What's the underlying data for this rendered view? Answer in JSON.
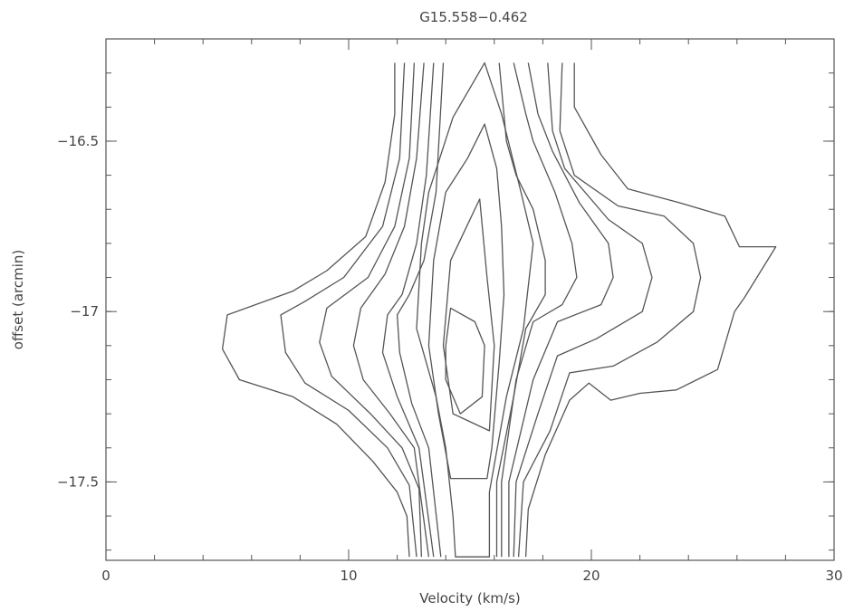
{
  "chart_data": {
    "type": "contour",
    "title": "G15.558−0.462",
    "xlabel": "Velocity (km/s)",
    "ylabel": "offset (arcmin)",
    "xlim": [
      0,
      30
    ],
    "ylim": [
      -17.73,
      -16.2
    ],
    "x_ticks": [
      {
        "value": 0,
        "label": "0"
      },
      {
        "value": 10,
        "label": "10"
      },
      {
        "value": 20,
        "label": "20"
      },
      {
        "value": 30,
        "label": "30"
      }
    ],
    "y_ticks": [
      {
        "value": -16.5,
        "label": "−16.5"
      },
      {
        "value": -17,
        "label": "−17"
      },
      {
        "value": -17.5,
        "label": "−17.5"
      }
    ],
    "grid": false,
    "line_color": "#555555",
    "contours": [
      {
        "level": 1,
        "closed": false,
        "points": [
          [
            11.9,
            -16.27
          ],
          [
            11.9,
            -16.42
          ],
          [
            11.5,
            -16.62
          ],
          [
            10.7,
            -16.78
          ],
          [
            9.1,
            -16.88
          ],
          [
            7.7,
            -16.94
          ],
          [
            5.0,
            -17.01
          ],
          [
            4.8,
            -17.11
          ],
          [
            5.5,
            -17.2
          ],
          [
            7.7,
            -17.25
          ],
          [
            9.5,
            -17.33
          ],
          [
            11.0,
            -17.44
          ],
          [
            12.0,
            -17.53
          ],
          [
            12.4,
            -17.6
          ],
          [
            12.5,
            -17.72
          ]
        ]
      },
      {
        "level": 1,
        "closed": false,
        "points": [
          [
            19.3,
            -16.27
          ],
          [
            19.3,
            -16.4
          ],
          [
            20.4,
            -16.54
          ],
          [
            21.5,
            -16.64
          ],
          [
            23.6,
            -16.68
          ],
          [
            25.5,
            -16.72
          ],
          [
            26.1,
            -16.81
          ],
          [
            27.6,
            -16.81
          ],
          [
            26.3,
            -16.96
          ],
          [
            25.9,
            -17.0
          ],
          [
            25.2,
            -17.17
          ],
          [
            23.5,
            -17.23
          ],
          [
            22.0,
            -17.24
          ],
          [
            20.8,
            -17.26
          ],
          [
            19.9,
            -17.21
          ],
          [
            19.1,
            -17.26
          ],
          [
            18.1,
            -17.42
          ],
          [
            17.4,
            -17.58
          ],
          [
            17.3,
            -17.72
          ]
        ]
      },
      {
        "level": 2,
        "closed": false,
        "points": [
          [
            12.3,
            -16.27
          ],
          [
            12.1,
            -16.55
          ],
          [
            11.4,
            -16.75
          ],
          [
            9.8,
            -16.9
          ],
          [
            8.2,
            -16.97
          ],
          [
            7.2,
            -17.01
          ],
          [
            7.4,
            -17.12
          ],
          [
            8.2,
            -17.21
          ],
          [
            10.0,
            -17.29
          ],
          [
            11.6,
            -17.4
          ],
          [
            12.5,
            -17.51
          ],
          [
            12.8,
            -17.72
          ]
        ]
      },
      {
        "level": 2,
        "closed": false,
        "points": [
          [
            18.8,
            -16.27
          ],
          [
            18.7,
            -16.47
          ],
          [
            19.3,
            -16.6
          ],
          [
            21.1,
            -16.69
          ],
          [
            23.0,
            -16.72
          ],
          [
            24.2,
            -16.8
          ],
          [
            24.5,
            -16.9
          ],
          [
            24.2,
            -17.0
          ],
          [
            22.7,
            -17.09
          ],
          [
            20.9,
            -17.16
          ],
          [
            19.1,
            -17.18
          ],
          [
            18.3,
            -17.35
          ],
          [
            17.2,
            -17.5
          ],
          [
            17.0,
            -17.72
          ]
        ]
      },
      {
        "level": 3,
        "closed": false,
        "points": [
          [
            12.7,
            -16.27
          ],
          [
            12.5,
            -16.55
          ],
          [
            11.9,
            -16.75
          ],
          [
            10.8,
            -16.9
          ],
          [
            9.1,
            -16.99
          ],
          [
            8.8,
            -17.09
          ],
          [
            9.3,
            -17.19
          ],
          [
            10.9,
            -17.3
          ],
          [
            12.2,
            -17.4
          ],
          [
            12.9,
            -17.52
          ],
          [
            13.0,
            -17.72
          ]
        ]
      },
      {
        "level": 3,
        "closed": false,
        "points": [
          [
            18.2,
            -16.27
          ],
          [
            18.4,
            -16.47
          ],
          [
            18.9,
            -16.58
          ],
          [
            20.7,
            -16.73
          ],
          [
            22.1,
            -16.8
          ],
          [
            22.5,
            -16.9
          ],
          [
            22.1,
            -17.0
          ],
          [
            20.2,
            -17.08
          ],
          [
            18.6,
            -17.13
          ],
          [
            17.8,
            -17.3
          ],
          [
            16.9,
            -17.5
          ],
          [
            16.8,
            -17.72
          ]
        ]
      },
      {
        "level": 4,
        "closed": false,
        "points": [
          [
            13.1,
            -16.27
          ],
          [
            12.8,
            -16.55
          ],
          [
            12.3,
            -16.75
          ],
          [
            11.5,
            -16.89
          ],
          [
            10.5,
            -16.99
          ],
          [
            10.2,
            -17.1
          ],
          [
            10.6,
            -17.2
          ],
          [
            11.7,
            -17.3
          ],
          [
            12.7,
            -17.4
          ],
          [
            13.3,
            -17.72
          ]
        ]
      },
      {
        "level": 4,
        "closed": false,
        "points": [
          [
            17.4,
            -16.27
          ],
          [
            17.8,
            -16.42
          ],
          [
            18.4,
            -16.53
          ],
          [
            19.5,
            -16.68
          ],
          [
            20.7,
            -16.8
          ],
          [
            20.9,
            -16.9
          ],
          [
            20.4,
            -16.98
          ],
          [
            18.6,
            -17.03
          ],
          [
            17.6,
            -17.2
          ],
          [
            16.6,
            -17.5
          ],
          [
            16.6,
            -17.72
          ]
        ]
      },
      {
        "level": 5,
        "closed": false,
        "points": [
          [
            13.5,
            -16.27
          ],
          [
            13.2,
            -16.6
          ],
          [
            12.8,
            -16.8
          ],
          [
            12.2,
            -16.95
          ],
          [
            11.6,
            -17.01
          ],
          [
            11.4,
            -17.12
          ],
          [
            12.0,
            -17.25
          ],
          [
            12.9,
            -17.4
          ],
          [
            13.5,
            -17.72
          ]
        ]
      },
      {
        "level": 5,
        "closed": false,
        "points": [
          [
            16.8,
            -16.27
          ],
          [
            17.3,
            -16.42
          ],
          [
            17.6,
            -16.5
          ],
          [
            18.5,
            -16.65
          ],
          [
            19.2,
            -16.8
          ],
          [
            19.4,
            -16.9
          ],
          [
            18.8,
            -16.98
          ],
          [
            17.6,
            -17.03
          ],
          [
            16.9,
            -17.2
          ],
          [
            16.3,
            -17.5
          ],
          [
            16.3,
            -17.72
          ]
        ]
      },
      {
        "level": 6,
        "closed": false,
        "points": [
          [
            13.9,
            -16.27
          ],
          [
            13.6,
            -16.65
          ],
          [
            13.1,
            -16.85
          ],
          [
            12.5,
            -16.95
          ],
          [
            12.0,
            -17.01
          ],
          [
            12.1,
            -17.12
          ],
          [
            12.6,
            -17.27
          ],
          [
            13.3,
            -17.4
          ],
          [
            13.8,
            -17.72
          ]
        ]
      },
      {
        "level": 6,
        "closed": false,
        "points": [
          [
            16.2,
            -16.27
          ],
          [
            16.5,
            -16.5
          ],
          [
            16.9,
            -16.6
          ],
          [
            17.6,
            -16.7
          ],
          [
            18.1,
            -16.85
          ],
          [
            18.1,
            -16.95
          ],
          [
            17.3,
            -17.05
          ],
          [
            16.8,
            -17.25
          ],
          [
            16.1,
            -17.5
          ],
          [
            16.1,
            -17.72
          ]
        ]
      },
      {
        "level": 7,
        "closed": true,
        "points": [
          [
            15.6,
            -16.27
          ],
          [
            16.3,
            -16.42
          ],
          [
            17.1,
            -16.65
          ],
          [
            17.6,
            -16.8
          ],
          [
            17.2,
            -17.05
          ],
          [
            16.5,
            -17.25
          ],
          [
            15.8,
            -17.53
          ],
          [
            15.8,
            -17.72
          ],
          [
            14.4,
            -17.72
          ],
          [
            14.3,
            -17.6
          ],
          [
            14.0,
            -17.4
          ],
          [
            13.6,
            -17.25
          ],
          [
            12.8,
            -17.05
          ],
          [
            13.0,
            -16.8
          ],
          [
            13.3,
            -16.65
          ],
          [
            14.3,
            -16.43
          ]
        ]
      },
      {
        "level": 8,
        "closed": true,
        "points": [
          [
            15.6,
            -16.45
          ],
          [
            16.1,
            -16.58
          ],
          [
            16.3,
            -16.75
          ],
          [
            16.4,
            -16.95
          ],
          [
            16.2,
            -17.15
          ],
          [
            15.9,
            -17.4
          ],
          [
            15.7,
            -17.49
          ],
          [
            14.2,
            -17.49
          ],
          [
            13.7,
            -17.3
          ],
          [
            13.3,
            -17.1
          ],
          [
            13.5,
            -16.85
          ],
          [
            14.0,
            -16.65
          ],
          [
            14.9,
            -16.55
          ]
        ]
      },
      {
        "level": 9,
        "closed": true,
        "points": [
          [
            15.4,
            -16.67
          ],
          [
            15.7,
            -16.9
          ],
          [
            16.0,
            -17.1
          ],
          [
            15.8,
            -17.35
          ],
          [
            14.3,
            -17.3
          ],
          [
            13.9,
            -17.1
          ],
          [
            14.2,
            -16.85
          ],
          [
            14.8,
            -16.76
          ]
        ]
      },
      {
        "level": 10,
        "closed": true,
        "points": [
          [
            14.2,
            -16.99
          ],
          [
            15.2,
            -17.03
          ],
          [
            15.6,
            -17.1
          ],
          [
            15.5,
            -17.25
          ],
          [
            14.6,
            -17.3
          ],
          [
            14.0,
            -17.2
          ],
          [
            14.0,
            -17.1
          ]
        ]
      }
    ]
  }
}
